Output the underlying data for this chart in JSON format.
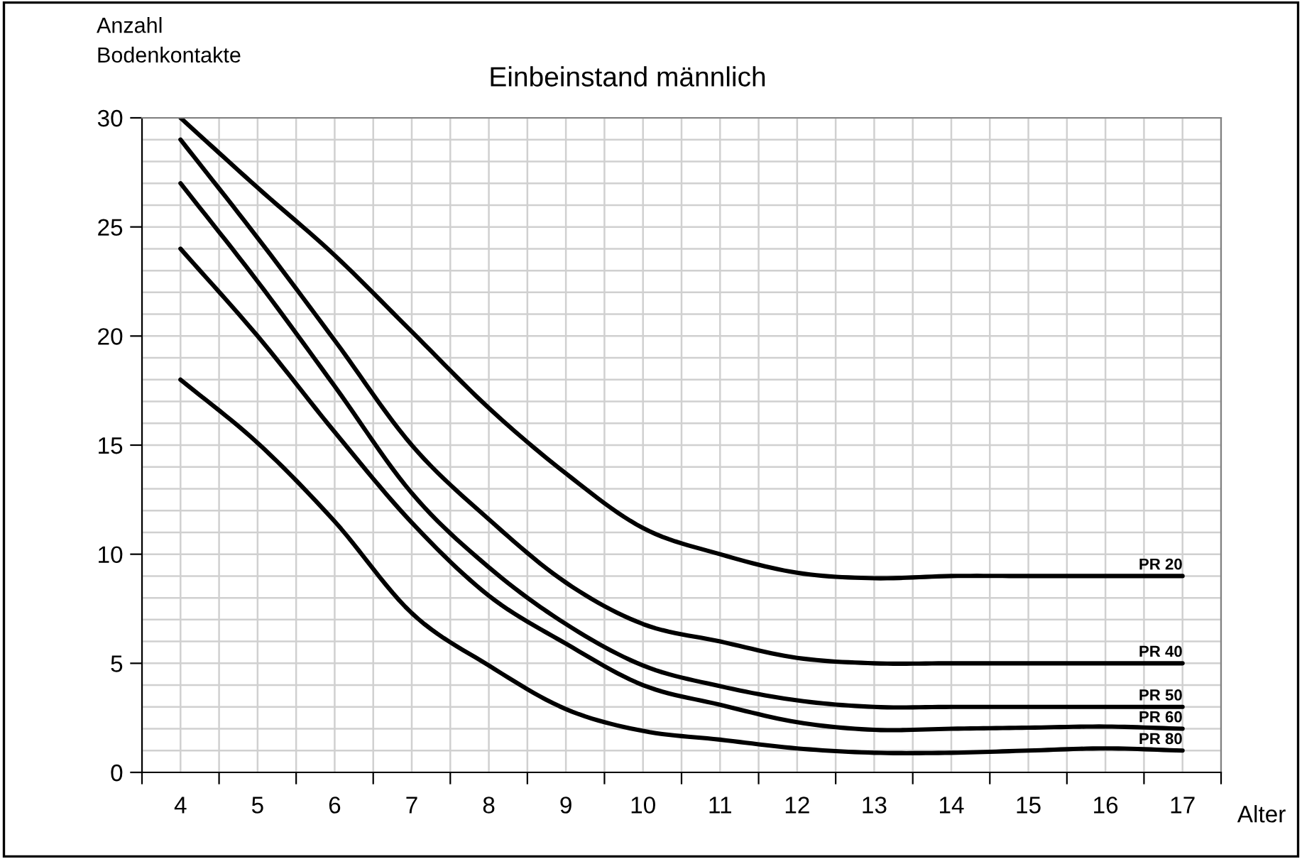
{
  "chart_data": {
    "type": "line",
    "title": "Einbeinstand männlich",
    "xlabel": "Alter",
    "ylabel": "Anzahl\nBodenkontakte",
    "categories": [
      "4",
      "5",
      "6",
      "7",
      "8",
      "9",
      "10",
      "11",
      "12",
      "13",
      "14",
      "15",
      "16",
      "17"
    ],
    "series": [
      {
        "name": "PR 20",
        "color": "#000000",
        "values": [
          30,
          26.8,
          23.7,
          20.2,
          16.7,
          13.7,
          11.2,
          10.0,
          9.15,
          8.9,
          9.0,
          9.0,
          9.0,
          9.0
        ]
      },
      {
        "name": "PR 40",
        "color": "#000000",
        "values": [
          29,
          24.5,
          19.8,
          15.0,
          11.6,
          8.7,
          6.8,
          6.0,
          5.25,
          5.0,
          5.0,
          5.0,
          5.0,
          5.0
        ]
      },
      {
        "name": "PR 50",
        "color": "#000000",
        "values": [
          27,
          22.5,
          17.7,
          12.8,
          9.4,
          6.8,
          4.9,
          3.95,
          3.3,
          3.0,
          3.0,
          3.0,
          3.0,
          3.0
        ]
      },
      {
        "name": "PR 60",
        "color": "#000000",
        "values": [
          24,
          20.0,
          15.6,
          11.45,
          8.1,
          5.9,
          4.0,
          3.1,
          2.3,
          1.95,
          2.0,
          2.05,
          2.1,
          2.0
        ]
      },
      {
        "name": "PR 80",
        "color": "#000000",
        "values": [
          18,
          15.1,
          11.5,
          7.3,
          4.9,
          2.9,
          1.9,
          1.5,
          1.1,
          0.9,
          0.9,
          1.0,
          1.1,
          1.0
        ]
      }
    ],
    "ylim": [
      0,
      30
    ],
    "yticks": [
      0,
      5,
      10,
      15,
      20,
      25,
      30
    ],
    "grid": true,
    "marker": "none",
    "line_style": "solid",
    "legend": false
  }
}
